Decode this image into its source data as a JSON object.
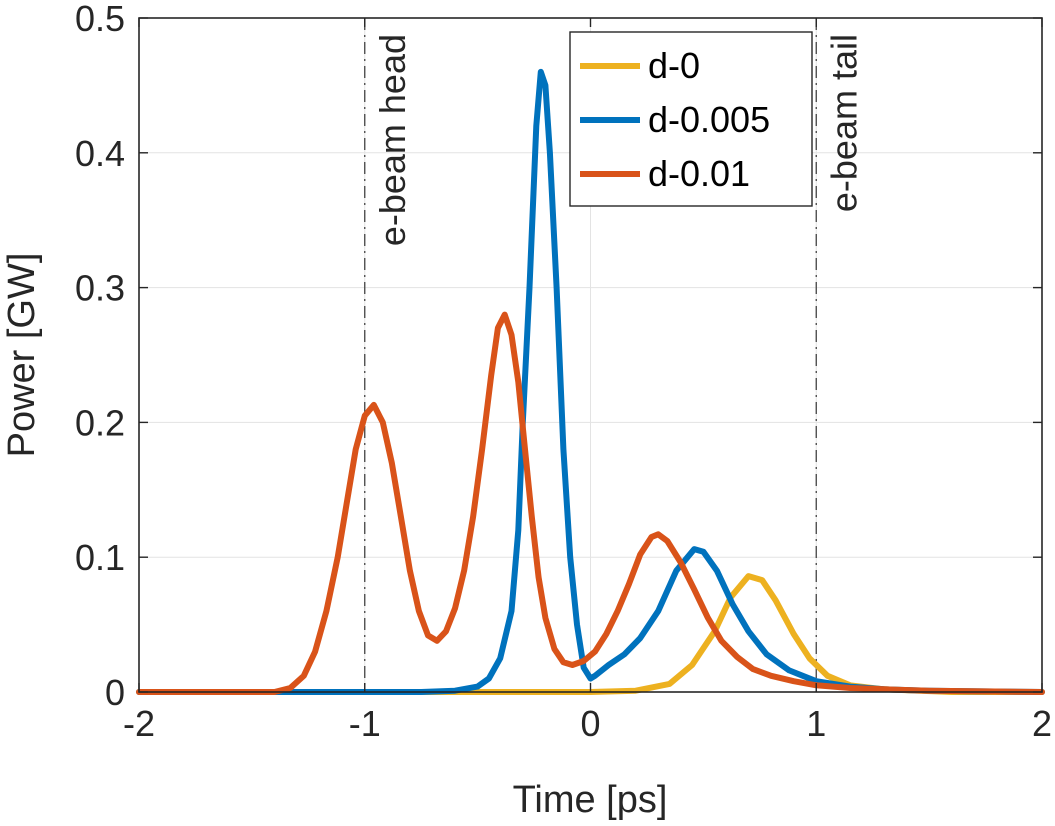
{
  "chart_data": {
    "type": "line",
    "title": "",
    "xlabel": "Time [ps]",
    "ylabel": "Power [GW]",
    "xlim": [
      -2,
      2
    ],
    "ylim": [
      0,
      0.5
    ],
    "xticks": [
      -2,
      -1,
      0,
      1,
      2
    ],
    "xtick_labels": [
      "-2",
      "-1",
      "0",
      "1",
      "2"
    ],
    "yticks": [
      0,
      0.1,
      0.2,
      0.3,
      0.4,
      0.5
    ],
    "ytick_labels": [
      "0",
      "0.1",
      "0.2",
      "0.3",
      "0.4",
      "0.5"
    ],
    "grid": true,
    "legend_position": "top-right",
    "vlines": [
      {
        "x": -1,
        "label": "e-beam head"
      },
      {
        "x": 1,
        "label": "e-beam tail"
      }
    ],
    "series": [
      {
        "name": "d-0",
        "color": "#EDB120",
        "points": [
          [
            -2,
            0
          ],
          [
            -0.6,
            0
          ],
          [
            0,
            0
          ],
          [
            0.2,
            0.001
          ],
          [
            0.35,
            0.006
          ],
          [
            0.45,
            0.02
          ],
          [
            0.55,
            0.045
          ],
          [
            0.62,
            0.07
          ],
          [
            0.7,
            0.086
          ],
          [
            0.76,
            0.083
          ],
          [
            0.82,
            0.068
          ],
          [
            0.9,
            0.043
          ],
          [
            0.97,
            0.025
          ],
          [
            1.05,
            0.012
          ],
          [
            1.15,
            0.005
          ],
          [
            1.3,
            0.002
          ],
          [
            1.6,
            0
          ],
          [
            2,
            0
          ]
        ]
      },
      {
        "name": "d-0.005",
        "color": "#0072BD",
        "points": [
          [
            -2,
            0
          ],
          [
            -0.75,
            0
          ],
          [
            -0.6,
            0.001
          ],
          [
            -0.5,
            0.004
          ],
          [
            -0.45,
            0.01
          ],
          [
            -0.4,
            0.025
          ],
          [
            -0.35,
            0.06
          ],
          [
            -0.32,
            0.12
          ],
          [
            -0.3,
            0.2
          ],
          [
            -0.27,
            0.3
          ],
          [
            -0.24,
            0.42
          ],
          [
            -0.22,
            0.46
          ],
          [
            -0.2,
            0.45
          ],
          [
            -0.18,
            0.4
          ],
          [
            -0.15,
            0.3
          ],
          [
            -0.12,
            0.18
          ],
          [
            -0.09,
            0.1
          ],
          [
            -0.06,
            0.05
          ],
          [
            -0.03,
            0.018
          ],
          [
            0,
            0.01
          ],
          [
            0.02,
            0.012
          ],
          [
            0.08,
            0.02
          ],
          [
            0.15,
            0.028
          ],
          [
            0.22,
            0.04
          ],
          [
            0.3,
            0.06
          ],
          [
            0.38,
            0.09
          ],
          [
            0.46,
            0.106
          ],
          [
            0.5,
            0.104
          ],
          [
            0.56,
            0.09
          ],
          [
            0.63,
            0.065
          ],
          [
            0.7,
            0.045
          ],
          [
            0.78,
            0.028
          ],
          [
            0.88,
            0.016
          ],
          [
            1,
            0.008
          ],
          [
            1.15,
            0.004
          ],
          [
            1.3,
            0.002
          ],
          [
            1.5,
            0.001
          ],
          [
            2,
            0
          ]
        ]
      },
      {
        "name": "d-0.01",
        "color": "#D95319",
        "points": [
          [
            -2,
            0
          ],
          [
            -1.4,
            0
          ],
          [
            -1.33,
            0.003
          ],
          [
            -1.27,
            0.012
          ],
          [
            -1.22,
            0.03
          ],
          [
            -1.17,
            0.06
          ],
          [
            -1.12,
            0.1
          ],
          [
            -1.08,
            0.14
          ],
          [
            -1.04,
            0.18
          ],
          [
            -1.0,
            0.205
          ],
          [
            -0.96,
            0.213
          ],
          [
            -0.92,
            0.2
          ],
          [
            -0.88,
            0.17
          ],
          [
            -0.84,
            0.13
          ],
          [
            -0.8,
            0.09
          ],
          [
            -0.76,
            0.06
          ],
          [
            -0.72,
            0.042
          ],
          [
            -0.68,
            0.038
          ],
          [
            -0.64,
            0.045
          ],
          [
            -0.6,
            0.062
          ],
          [
            -0.56,
            0.09
          ],
          [
            -0.52,
            0.13
          ],
          [
            -0.48,
            0.18
          ],
          [
            -0.44,
            0.235
          ],
          [
            -0.41,
            0.27
          ],
          [
            -0.38,
            0.28
          ],
          [
            -0.35,
            0.265
          ],
          [
            -0.32,
            0.23
          ],
          [
            -0.29,
            0.18
          ],
          [
            -0.26,
            0.13
          ],
          [
            -0.23,
            0.085
          ],
          [
            -0.2,
            0.055
          ],
          [
            -0.16,
            0.032
          ],
          [
            -0.12,
            0.022
          ],
          [
            -0.08,
            0.02
          ],
          [
            -0.03,
            0.023
          ],
          [
            0.02,
            0.03
          ],
          [
            0.07,
            0.043
          ],
          [
            0.12,
            0.06
          ],
          [
            0.17,
            0.08
          ],
          [
            0.22,
            0.102
          ],
          [
            0.27,
            0.115
          ],
          [
            0.3,
            0.117
          ],
          [
            0.34,
            0.112
          ],
          [
            0.4,
            0.096
          ],
          [
            0.46,
            0.076
          ],
          [
            0.52,
            0.055
          ],
          [
            0.58,
            0.038
          ],
          [
            0.65,
            0.026
          ],
          [
            0.72,
            0.017
          ],
          [
            0.8,
            0.012
          ],
          [
            0.9,
            0.008
          ],
          [
            1,
            0.005
          ],
          [
            1.15,
            0.003
          ],
          [
            1.3,
            0.002
          ],
          [
            1.5,
            0.001
          ],
          [
            2,
            0
          ]
        ]
      }
    ]
  }
}
